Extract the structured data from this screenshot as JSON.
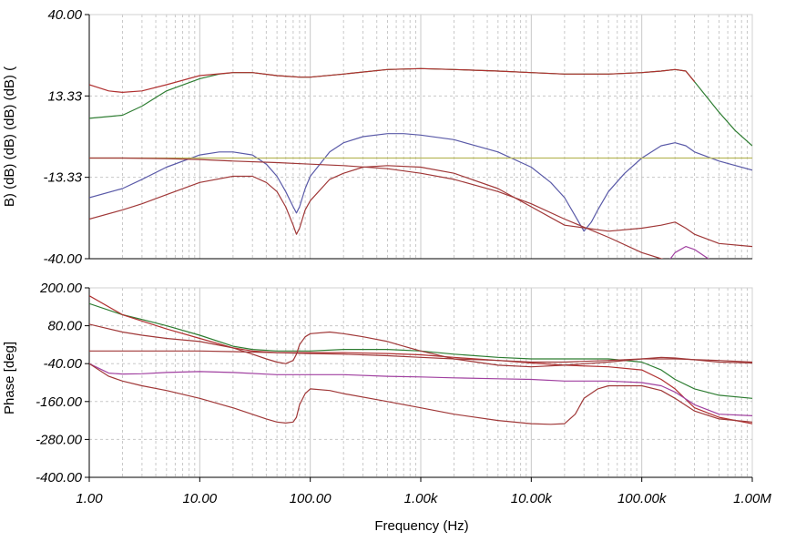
{
  "chart_data": [
    {
      "type": "line",
      "panel": "magnitude",
      "ylabel": "B) (dB) (dB) (dB) (dB) (",
      "xscale": "log",
      "xlim": [
        1,
        1000000
      ],
      "ylim": [
        -40,
        40
      ],
      "yticks": [
        "40.00",
        "13.33",
        "-13.33",
        "-40.00"
      ],
      "grid": true,
      "series": [
        {
          "color": "#2e7d32",
          "x": [
            1,
            2,
            3,
            5,
            10,
            15,
            20,
            30,
            50,
            80,
            100,
            200,
            500,
            1000,
            2000,
            5000,
            10000,
            20000,
            50000,
            100000,
            150000,
            200000,
            250000,
            300000,
            500000,
            700000,
            1000000
          ],
          "y": [
            6,
            7,
            10,
            15,
            19,
            20.5,
            21,
            21,
            20,
            19.5,
            19.5,
            20.5,
            22,
            22.3,
            22,
            21.5,
            21,
            20.5,
            20.5,
            21,
            21.5,
            22,
            21.5,
            18,
            8,
            2,
            -3
          ]
        },
        {
          "color": "#b03030",
          "x": [
            1,
            1.5,
            2,
            3,
            5,
            10,
            20,
            30,
            50,
            80,
            100,
            200,
            500,
            1000,
            2000,
            5000,
            10000,
            20000,
            50000,
            100000,
            150000,
            200000,
            250000,
            300000
          ],
          "y": [
            17,
            15,
            14.5,
            15,
            17,
            20,
            21,
            21,
            20,
            19.5,
            19.5,
            20.5,
            22,
            22.3,
            22,
            21.5,
            21,
            20.5,
            20.5,
            21,
            21.5,
            22,
            21.5,
            18
          ]
        },
        {
          "color": "#5a5aa8",
          "x": [
            1,
            2,
            3,
            5,
            10,
            15,
            20,
            30,
            40,
            50,
            60,
            70,
            75,
            80,
            90,
            100,
            150,
            200,
            300,
            500,
            700,
            1000,
            2000,
            5000,
            10000,
            15000,
            20000,
            25000,
            30000,
            35000,
            40000,
            50000,
            70000,
            100000,
            150000,
            200000,
            250000,
            300000,
            500000,
            1000000
          ],
          "y": [
            -20,
            -17,
            -14,
            -10,
            -6,
            -5,
            -5,
            -6,
            -9,
            -13,
            -18,
            -23,
            -25,
            -23,
            -17,
            -13,
            -5,
            -2,
            0,
            1,
            1,
            0.5,
            -1,
            -5,
            -10,
            -15,
            -20,
            -26,
            -31,
            -28,
            -24,
            -18,
            -12,
            -7,
            -3,
            -2,
            -3,
            -5,
            -8,
            -11
          ]
        },
        {
          "color": "#b8b85a",
          "x": [
            1,
            1000000
          ],
          "y": [
            -7,
            -7
          ]
        },
        {
          "color": "#a03838",
          "x": [
            1,
            2,
            5,
            10,
            20,
            50,
            100,
            200,
            500,
            1000,
            2000,
            5000,
            10000,
            20000,
            50000,
            100000,
            150000,
            200000
          ],
          "y": [
            -7,
            -7,
            -7.2,
            -7.5,
            -8,
            -8.5,
            -9,
            -9.5,
            -10.5,
            -12,
            -14,
            -18,
            -22,
            -27,
            -33,
            -38,
            -40,
            -41
          ]
        },
        {
          "color": "#a03838",
          "x": [
            1,
            2,
            3,
            5,
            10,
            20,
            30,
            40,
            50,
            60,
            70,
            75,
            80,
            90,
            100,
            150,
            200,
            300,
            500,
            1000,
            2000,
            5000,
            10000,
            20000,
            50000,
            100000,
            150000,
            200000,
            250000,
            300000,
            500000,
            1000000
          ],
          "y": [
            -27,
            -24,
            -22,
            -19,
            -15,
            -13,
            -13,
            -15,
            -18,
            -23,
            -29,
            -32,
            -30,
            -24,
            -21,
            -14,
            -12,
            -10,
            -9.5,
            -10,
            -12,
            -17,
            -23,
            -29,
            -31,
            -30,
            -29,
            -28,
            -30,
            -32,
            -35,
            -36
          ]
        },
        {
          "color": "#a040a0",
          "x": [
            120000,
            150000,
            200000,
            250000,
            300000,
            400000,
            500000,
            700000,
            1000000
          ],
          "y": [
            -46,
            -44,
            -38,
            -36,
            -37,
            -40,
            -42,
            -44,
            -45
          ]
        }
      ]
    },
    {
      "type": "line",
      "panel": "phase",
      "ylabel": "Phase [deg]",
      "xlabel": "Frequency (Hz)",
      "xscale": "log",
      "xlim": [
        1,
        1000000
      ],
      "ylim": [
        -400,
        200
      ],
      "yticks": [
        "200.00",
        "80.00",
        "-40.00",
        "-160.00",
        "-280.00",
        "-400.00"
      ],
      "xticks": [
        "1.00",
        "10.00",
        "100.00",
        "1.00k",
        "10.00k",
        "100.00k",
        "1.00M"
      ],
      "grid": true,
      "series": [
        {
          "color": "#2e7d32",
          "x": [
            1,
            2,
            3,
            5,
            10,
            20,
            30,
            50,
            100,
            200,
            500,
            1000,
            2000,
            5000,
            10000,
            20000,
            50000,
            100000,
            150000,
            200000,
            300000,
            500000,
            1000000
          ],
          "y": [
            150,
            115,
            100,
            80,
            50,
            15,
            5,
            0,
            0,
            5,
            5,
            0,
            -10,
            -20,
            -25,
            -25,
            -25,
            -35,
            -60,
            -90,
            -120,
            -140,
            -150
          ]
        },
        {
          "color": "#b03030",
          "x": [
            1,
            2,
            3,
            5,
            10,
            20,
            30,
            50,
            100,
            200,
            500,
            1000,
            2000,
            5000,
            10000,
            20000,
            50000,
            100000,
            150000,
            200000,
            300000,
            500000,
            1000000
          ],
          "y": [
            175,
            115,
            95,
            70,
            40,
            10,
            0,
            -5,
            -5,
            -5,
            -8,
            -12,
            -20,
            -30,
            -38,
            -45,
            -50,
            -60,
            -90,
            -120,
            -180,
            -210,
            -230
          ]
        },
        {
          "color": "#a03838",
          "x": [
            1,
            2,
            3,
            5,
            10,
            20,
            30,
            40,
            50,
            60,
            70,
            75,
            80,
            90,
            100,
            150,
            200,
            300,
            500,
            700,
            1000,
            2000,
            5000,
            10000,
            20000,
            50000,
            100000,
            150000,
            200000,
            500000,
            1000000
          ],
          "y": [
            85,
            60,
            50,
            40,
            30,
            10,
            -10,
            -25,
            -35,
            -40,
            -30,
            -10,
            20,
            45,
            55,
            60,
            55,
            45,
            30,
            15,
            0,
            -25,
            -45,
            -50,
            -45,
            -35,
            -25,
            -20,
            -22,
            -35,
            -38
          ]
        },
        {
          "color": "#a03838",
          "x": [
            1,
            2,
            5,
            10,
            20,
            50,
            100,
            200,
            500,
            1000,
            2000,
            5000,
            10000,
            20000,
            50000,
            100000,
            200000,
            500000,
            1000000
          ],
          "y": [
            0,
            0,
            0,
            0,
            -2,
            -5,
            -8,
            -10,
            -15,
            -20,
            -25,
            -30,
            -35,
            -35,
            -30,
            -25,
            -25,
            -30,
            -35
          ]
        },
        {
          "color": "#a040a0",
          "x": [
            1,
            1.5,
            2,
            3,
            5,
            10,
            20,
            50,
            100,
            200,
            500,
            1000,
            2000,
            5000,
            10000,
            20000,
            50000,
            100000,
            150000,
            200000,
            300000,
            500000,
            1000000
          ],
          "y": [
            -40,
            -70,
            -73,
            -72,
            -68,
            -65,
            -68,
            -75,
            -75,
            -75,
            -80,
            -82,
            -85,
            -88,
            -90,
            -95,
            -95,
            -100,
            -110,
            -130,
            -170,
            -200,
            -205
          ]
        },
        {
          "color": "#a03838",
          "x": [
            1,
            1.5,
            2,
            3,
            5,
            10,
            20,
            40,
            50,
            60,
            70,
            75,
            80,
            90,
            100,
            150,
            200,
            500,
            1000,
            2000,
            5000,
            10000,
            15000,
            20000,
            25000,
            30000,
            40000,
            50000,
            100000,
            150000,
            200000,
            300000,
            500000,
            1000000
          ],
          "y": [
            -40,
            -80,
            -95,
            -110,
            -125,
            -150,
            -180,
            -215,
            -225,
            -228,
            -225,
            -210,
            -170,
            -135,
            -120,
            -125,
            -135,
            -160,
            -180,
            -200,
            -220,
            -230,
            -232,
            -230,
            -200,
            -150,
            -120,
            -110,
            -110,
            -125,
            -150,
            -190,
            -215,
            -225
          ]
        }
      ]
    }
  ]
}
